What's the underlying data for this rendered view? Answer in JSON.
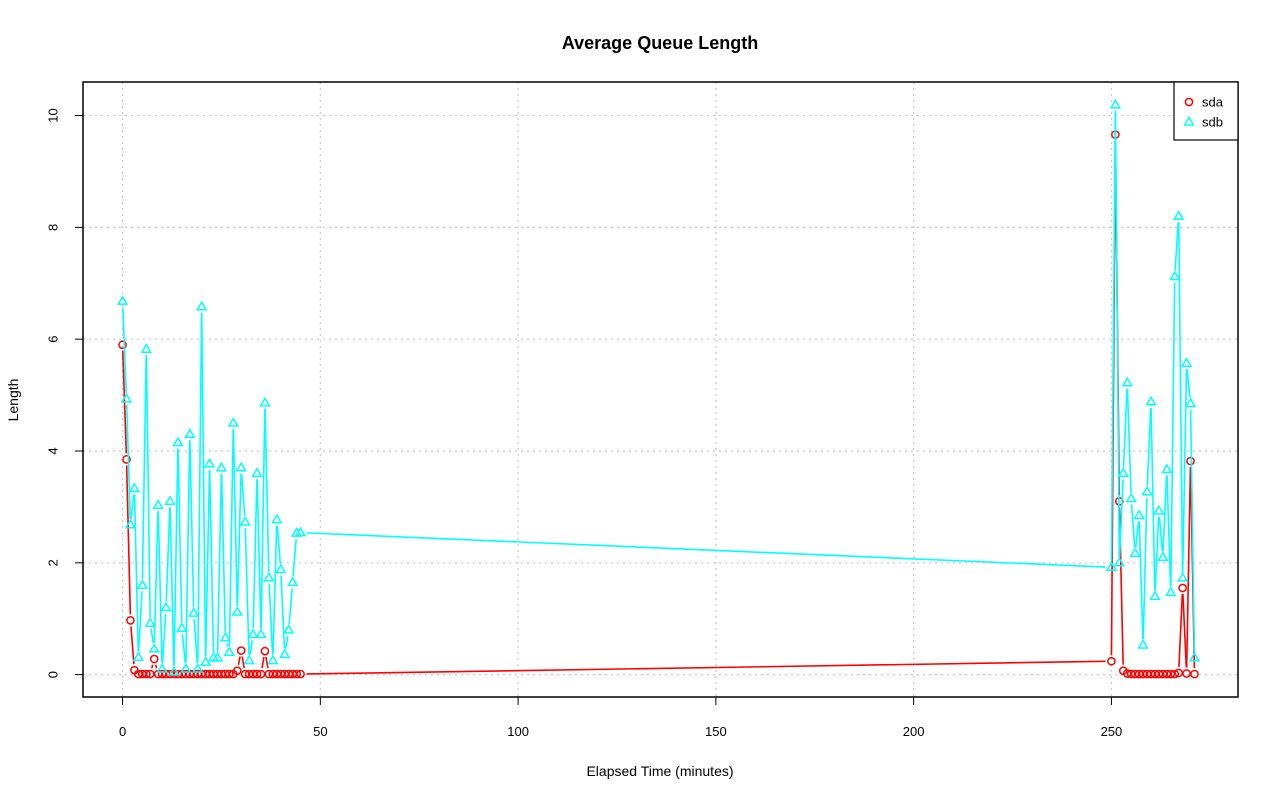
{
  "chart_data": {
    "type": "line",
    "title": "Average Queue Length",
    "xlabel": "Elapsed Time (minutes)",
    "ylabel": "Length",
    "xlim": [
      -10,
      282
    ],
    "ylim": [
      -0.4,
      10.6
    ],
    "xticks": [
      0,
      50,
      100,
      150,
      200,
      250
    ],
    "yticks": [
      0,
      2,
      4,
      6,
      8,
      10
    ],
    "grid": true,
    "legend_position": "top-right",
    "series": [
      {
        "name": "sda",
        "color": "#ff0000",
        "marker": "circle",
        "x": [
          0,
          1,
          2,
          3,
          4,
          5,
          6,
          7,
          8,
          9,
          10,
          11,
          12,
          13,
          14,
          15,
          16,
          17,
          18,
          19,
          20,
          21,
          22,
          23,
          24,
          25,
          26,
          27,
          28,
          29,
          30,
          31,
          32,
          33,
          34,
          35,
          36,
          37,
          38,
          39,
          40,
          41,
          42,
          43,
          44,
          45,
          250,
          251,
          252,
          253,
          254,
          255,
          256,
          257,
          258,
          259,
          260,
          261,
          262,
          263,
          264,
          265,
          266,
          267,
          268,
          269,
          270,
          271
        ],
        "values": [
          5.9,
          3.85,
          0.97,
          0.08,
          0.01,
          0.01,
          0.01,
          0.01,
          0.28,
          0.01,
          0.01,
          0.01,
          0.01,
          0.01,
          0.01,
          0.01,
          0.01,
          0.01,
          0.01,
          0.01,
          0.01,
          0.01,
          0.01,
          0.01,
          0.01,
          0.01,
          0.01,
          0.01,
          0.01,
          0.07,
          0.43,
          0.01,
          0.01,
          0.01,
          0.01,
          0.01,
          0.42,
          0.01,
          0.01,
          0.01,
          0.01,
          0.01,
          0.01,
          0.01,
          0.01,
          0.01,
          0.24,
          9.66,
          3.1,
          0.07,
          0.02,
          0.01,
          0.01,
          0.01,
          0.01,
          0.01,
          0.01,
          0.01,
          0.01,
          0.01,
          0.01,
          0.01,
          0.01,
          0.03,
          1.55,
          0.02,
          3.82,
          0.01
        ]
      },
      {
        "name": "sdb",
        "color": "#00ffff",
        "marker": "triangle",
        "x": [
          0,
          1,
          2,
          3,
          4,
          5,
          6,
          7,
          8,
          9,
          10,
          11,
          12,
          13,
          14,
          15,
          16,
          17,
          18,
          19,
          20,
          21,
          22,
          23,
          24,
          25,
          26,
          27,
          28,
          29,
          30,
          31,
          32,
          33,
          34,
          35,
          36,
          37,
          38,
          39,
          40,
          41,
          42,
          43,
          44,
          45,
          250,
          251,
          252,
          253,
          254,
          255,
          256,
          257,
          258,
          259,
          260,
          261,
          262,
          263,
          264,
          265,
          266,
          267,
          268,
          269,
          270,
          271
        ],
        "values": [
          6.68,
          4.93,
          2.68,
          3.33,
          0.31,
          1.6,
          5.82,
          0.92,
          0.46,
          3.03,
          0.1,
          1.2,
          3.1,
          0.05,
          4.15,
          0.83,
          0.1,
          4.3,
          1.1,
          0.1,
          6.58,
          0.22,
          3.77,
          0.3,
          0.3,
          3.7,
          0.66,
          0.4,
          4.5,
          1.12,
          3.7,
          2.73,
          0.25,
          0.72,
          3.6,
          0.72,
          4.86,
          1.73,
          0.25,
          2.77,
          1.88,
          0.36,
          0.8,
          1.65,
          2.53,
          2.54,
          1.92,
          10.19,
          2.0,
          3.6,
          5.22,
          3.15,
          2.17,
          2.85,
          0.53,
          3.27,
          4.88,
          1.4,
          2.93,
          2.1,
          3.67,
          1.47,
          7.12,
          8.2,
          1.73,
          5.57,
          4.85,
          0.3
        ]
      }
    ]
  }
}
